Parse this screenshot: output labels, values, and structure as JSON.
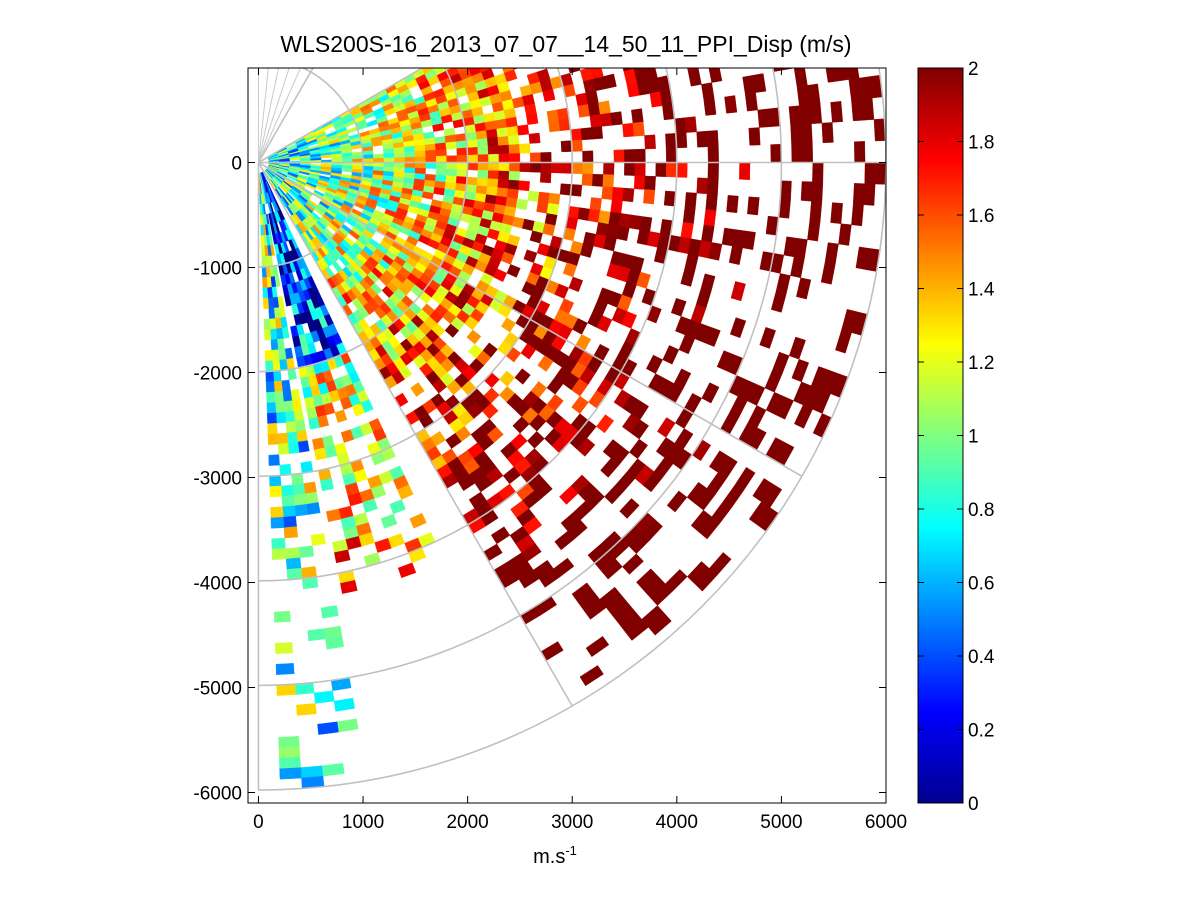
{
  "chart_data": {
    "type": "heatmap",
    "subtype": "ppi-polar-sector",
    "title": "WLS200S-16_2013_07_07__14_50_11_PPI_Disp (m/s)",
    "xlabel": "m.s",
    "xlabel_superscript": "-1",
    "ylabel": "",
    "xlim": [
      -100,
      6000
    ],
    "ylim": [
      -6100,
      900
    ],
    "xticks": [
      0,
      1000,
      2000,
      3000,
      4000,
      5000,
      6000
    ],
    "xtick_labels": [
      "0",
      "1000",
      "2000",
      "3000",
      "4000",
      "5000",
      "6000"
    ],
    "yticks": [
      0,
      -1000,
      -2000,
      -3000,
      -4000,
      -5000,
      -6000
    ],
    "ytick_labels": [
      "0",
      "-1000",
      "-2000",
      "-3000",
      "-4000",
      "-5000",
      "-6000"
    ],
    "polar_grid": {
      "ring_radii": [
        1000,
        2000,
        3000,
        4000,
        5000,
        6000
      ],
      "spoke_angles_deg": [
        30,
        60,
        90,
        120,
        150,
        180
      ]
    },
    "colorbar": {
      "colormap": "jet",
      "min": 0,
      "max": 2,
      "ticks": [
        "0",
        "0.2",
        "0.4",
        "0.6",
        "0.8",
        "1",
        "1.2",
        "1.4",
        "1.6",
        "1.8",
        "2"
      ]
    },
    "sectors": [
      {
        "name": "upper-wedge",
        "az_from_deg": 60,
        "az_to_deg": 90,
        "r_max": 6000,
        "trend": "cyan near origin rising to dark red beyond 3000 m"
      },
      {
        "name": "main-wedge",
        "az_from_deg": 90,
        "az_to_deg": 150,
        "r_max": 6000,
        "trend": "cyan-green near origin, red and dark red beyond 2500 m"
      },
      {
        "name": "narrow-beam",
        "az_from_deg": 155,
        "az_to_deg": 168,
        "r_max": 4200,
        "trend": "dark blue near origin, mixed cyan and red further out"
      },
      {
        "name": "south-beam",
        "az_from_deg": 170,
        "az_to_deg": 178,
        "r_max": 6000,
        "trend": "cyan-green with red patches"
      }
    ]
  }
}
